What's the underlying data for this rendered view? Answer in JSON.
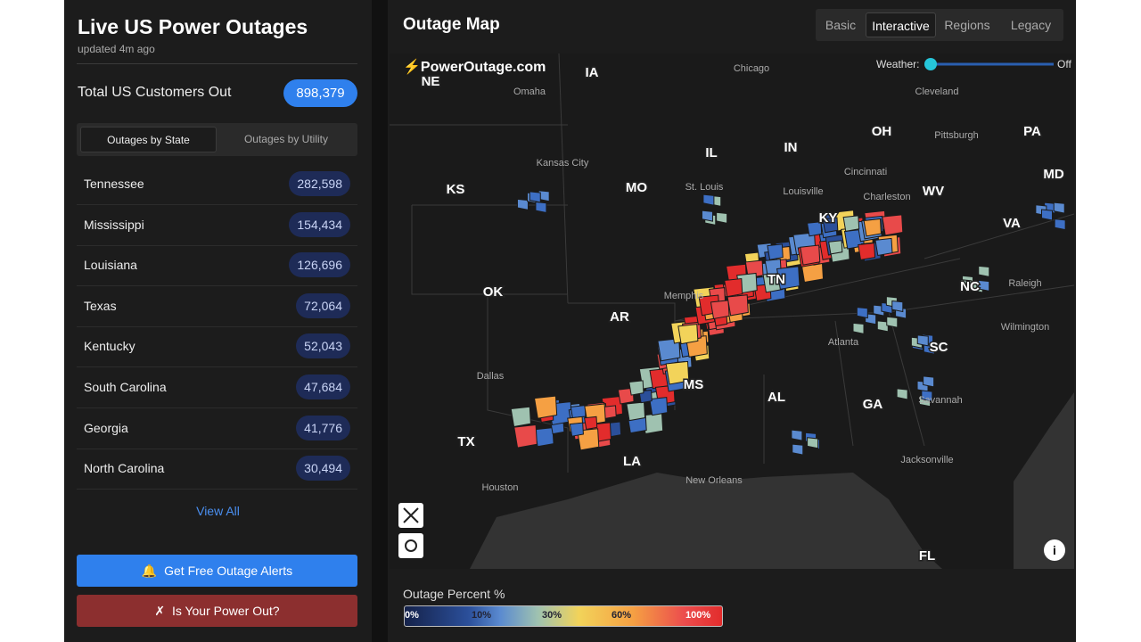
{
  "header": {
    "title": "Live US Power Outages",
    "updated": "updated 4m ago"
  },
  "total": {
    "label": "Total US Customers Out",
    "value": "898,379"
  },
  "tabs": [
    "Outages by State",
    "Outages by Utility"
  ],
  "states": [
    {
      "name": "Tennessee",
      "count": "282,598"
    },
    {
      "name": "Mississippi",
      "count": "154,434"
    },
    {
      "name": "Louisiana",
      "count": "126,696"
    },
    {
      "name": "Texas",
      "count": "72,064"
    },
    {
      "name": "Kentucky",
      "count": "52,043"
    },
    {
      "name": "South Carolina",
      "count": "47,684"
    },
    {
      "name": "Georgia",
      "count": "41,776"
    },
    {
      "name": "North Carolina",
      "count": "30,494"
    }
  ],
  "view_all": "View All",
  "buttons": {
    "alerts": "Get Free Outage Alerts",
    "power_out": "Is Your Power Out?"
  },
  "map": {
    "title": "Outage Map",
    "views": [
      "Basic",
      "Interactive",
      "Regions",
      "Legacy"
    ],
    "brand": "PowerOutage.com",
    "weather_label": "Weather:",
    "weather_state": "Off",
    "state_labels": [
      "NE",
      "IA",
      "IL",
      "IN",
      "OH",
      "PA",
      "MD",
      "KS",
      "MO",
      "KY",
      "WV",
      "VA",
      "OK",
      "AR",
      "TN",
      "NC",
      "SC",
      "MS",
      "AL",
      "GA",
      "TX",
      "LA",
      "FL"
    ],
    "city_labels": [
      "Chicago",
      "Omaha",
      "Cleveland",
      "Pittsburgh",
      "Kansas City",
      "St. Louis",
      "Cincinnati",
      "Louisville",
      "Charleston",
      "Memphis",
      "Raleigh",
      "Atlanta",
      "Wilmington",
      "Dallas",
      "Savannah",
      "Jacksonville",
      "Houston",
      "New Orleans"
    ]
  },
  "legend": {
    "title": "Outage Percent %",
    "stops": [
      "0%",
      "10%",
      "30%",
      "60%",
      "100%"
    ]
  }
}
